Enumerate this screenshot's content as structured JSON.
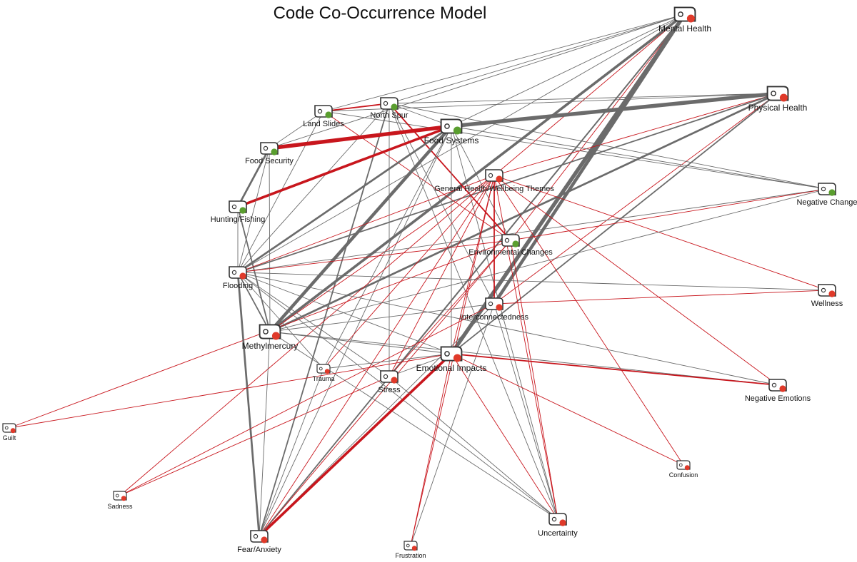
{
  "title": "Code Co-Occurrence Model",
  "colors": {
    "green_dot": "#5a9e2f",
    "red_dot": "#e03a2a",
    "gray_edge": "#6b6b6b",
    "red_edge": "#c8161d",
    "icon_stroke": "#333333"
  },
  "nodes": [
    {
      "id": "mental_health",
      "label": "Mental Health",
      "dot": "red",
      "size": "large"
    },
    {
      "id": "physical_health",
      "label": "Physical Health",
      "dot": "red",
      "size": "large"
    },
    {
      "id": "land_slides",
      "label": "Land Slides",
      "dot": "green",
      "size": "medium"
    },
    {
      "id": "north_spur",
      "label": "North Spur",
      "dot": "green",
      "size": "medium"
    },
    {
      "id": "food_systems",
      "label": "Food Systems",
      "dot": "green",
      "size": "large"
    },
    {
      "id": "food_security",
      "label": "Food Security",
      "dot": "green",
      "size": "medium"
    },
    {
      "id": "general_health",
      "label": "General Health/Wellbeing Themes",
      "dot": "red",
      "size": "medium"
    },
    {
      "id": "negative_change",
      "label": "Negative Change",
      "dot": "green",
      "size": "medium"
    },
    {
      "id": "hunting_fishing",
      "label": "Hunting/Fishing",
      "dot": "green",
      "size": "medium"
    },
    {
      "id": "environmental_changes",
      "label": "Environmental Changes",
      "dot": "green",
      "size": "medium"
    },
    {
      "id": "flooding",
      "label": "Flooding",
      "dot": "red",
      "size": "medium"
    },
    {
      "id": "wellness",
      "label": "Wellness",
      "dot": "red",
      "size": "medium"
    },
    {
      "id": "interconnectedness",
      "label": "Interconnectedness",
      "dot": "red",
      "size": "medium"
    },
    {
      "id": "methylmercury",
      "label": "Methylmercury",
      "dot": "red",
      "size": "large"
    },
    {
      "id": "emotional_impacts",
      "label": "Emotional Impacts",
      "dot": "red",
      "size": "large"
    },
    {
      "id": "trauma",
      "label": "Trauma",
      "dot": "red",
      "size": "small"
    },
    {
      "id": "stress",
      "label": "Stress",
      "dot": "red",
      "size": "medium"
    },
    {
      "id": "negative_emotions",
      "label": "Negative Emotions",
      "dot": "red",
      "size": "medium"
    },
    {
      "id": "guilt",
      "label": "Guilt",
      "dot": "red",
      "size": "small"
    },
    {
      "id": "confusion",
      "label": "Confusion",
      "dot": "red",
      "size": "small"
    },
    {
      "id": "sadness",
      "label": "Sadness",
      "dot": "red",
      "size": "small"
    },
    {
      "id": "uncertainty",
      "label": "Uncertainty",
      "dot": "red",
      "size": "medium"
    },
    {
      "id": "fear_anxiety",
      "label": "Fear/Anxiety",
      "dot": "red",
      "size": "medium"
    },
    {
      "id": "frustration",
      "label": "Frustration",
      "dot": "red",
      "size": "small"
    }
  ],
  "edges": [
    {
      "from": "mental_health",
      "to": "land_slides",
      "color": "gray",
      "weight": 1
    },
    {
      "from": "mental_health",
      "to": "north_spur",
      "color": "gray",
      "weight": 1
    },
    {
      "from": "mental_health",
      "to": "food_security",
      "color": "gray",
      "weight": 1
    },
    {
      "from": "mental_health",
      "to": "food_systems",
      "color": "gray",
      "weight": 1
    },
    {
      "from": "mental_health",
      "to": "general_health",
      "color": "red",
      "weight": 1
    },
    {
      "from": "mental_health",
      "to": "environmental_changes",
      "color": "red",
      "weight": 1
    },
    {
      "from": "mental_health",
      "to": "flooding",
      "color": "gray",
      "weight": 1
    },
    {
      "from": "mental_health",
      "to": "methylmercury",
      "color": "gray",
      "weight": 4
    },
    {
      "from": "mental_health",
      "to": "interconnectedness",
      "color": "gray",
      "weight": 5
    },
    {
      "from": "mental_health",
      "to": "emotional_impacts",
      "color": "gray",
      "weight": 6
    },
    {
      "from": "mental_health",
      "to": "stress",
      "color": "gray",
      "weight": 2
    },
    {
      "from": "mental_health",
      "to": "fear_anxiety",
      "color": "gray",
      "weight": 2
    },
    {
      "from": "physical_health",
      "to": "land_slides",
      "color": "gray",
      "weight": 1
    },
    {
      "from": "physical_health",
      "to": "north_spur",
      "color": "gray",
      "weight": 1
    },
    {
      "from": "physical_health",
      "to": "food_systems",
      "color": "gray",
      "weight": 6
    },
    {
      "from": "physical_health",
      "to": "general_health",
      "color": "red",
      "weight": 1
    },
    {
      "from": "physical_health",
      "to": "flooding",
      "color": "gray",
      "weight": 2
    },
    {
      "from": "physical_health",
      "to": "methylmercury",
      "color": "gray",
      "weight": 3
    },
    {
      "from": "physical_health",
      "to": "interconnectedness",
      "color": "red",
      "weight": 1
    },
    {
      "from": "physical_health",
      "to": "emotional_impacts",
      "color": "gray",
      "weight": 2
    },
    {
      "from": "land_slides",
      "to": "north_spur",
      "color": "red",
      "weight": 2
    },
    {
      "from": "land_slides",
      "to": "food_security",
      "color": "gray",
      "weight": 1
    },
    {
      "from": "land_slides",
      "to": "environmental_changes",
      "color": "red",
      "weight": 1
    },
    {
      "from": "land_slides",
      "to": "flooding",
      "color": "gray",
      "weight": 1
    },
    {
      "from": "land_slides",
      "to": "negative_change",
      "color": "gray",
      "weight": 1
    },
    {
      "from": "north_spur",
      "to": "food_systems",
      "color": "gray",
      "weight": 1
    },
    {
      "from": "north_spur",
      "to": "environmental_changes",
      "color": "red",
      "weight": 2
    },
    {
      "from": "north_spur",
      "to": "flooding",
      "color": "gray",
      "weight": 1
    },
    {
      "from": "north_spur",
      "to": "fear_anxiety",
      "color": "gray",
      "weight": 2
    },
    {
      "from": "north_spur",
      "to": "uncertainty",
      "color": "gray",
      "weight": 1
    },
    {
      "from": "north_spur",
      "to": "stress",
      "color": "gray",
      "weight": 1
    },
    {
      "from": "north_spur",
      "to": "negative_change",
      "color": "gray",
      "weight": 1
    },
    {
      "from": "north_spur",
      "to": "interconnectedness",
      "color": "gray",
      "weight": 1
    },
    {
      "from": "food_systems",
      "to": "food_security",
      "color": "red",
      "weight": 6
    },
    {
      "from": "food_systems",
      "to": "hunting_fishing",
      "color": "red",
      "weight": 4
    },
    {
      "from": "food_systems",
      "to": "flooding",
      "color": "gray",
      "weight": 3
    },
    {
      "from": "food_systems",
      "to": "methylmercury",
      "color": "gray",
      "weight": 5
    },
    {
      "from": "food_systems",
      "to": "negative_change",
      "color": "gray",
      "weight": 1
    },
    {
      "from": "food_systems",
      "to": "trauma",
      "color": "gray",
      "weight": 1
    },
    {
      "from": "food_systems",
      "to": "fear_anxiety",
      "color": "gray",
      "weight": 1
    },
    {
      "from": "food_systems",
      "to": "emotional_impacts",
      "color": "gray",
      "weight": 1
    },
    {
      "from": "food_systems",
      "to": "uncertainty",
      "color": "gray",
      "weight": 1
    },
    {
      "from": "food_systems",
      "to": "environmental_changes",
      "color": "gray",
      "weight": 1
    },
    {
      "from": "food_security",
      "to": "hunting_fishing",
      "color": "gray",
      "weight": 3
    },
    {
      "from": "food_security",
      "to": "flooding",
      "color": "gray",
      "weight": 1
    },
    {
      "from": "food_security",
      "to": "methylmercury",
      "color": "gray",
      "weight": 1
    },
    {
      "from": "hunting_fishing",
      "to": "methylmercury",
      "color": "gray",
      "weight": 2
    },
    {
      "from": "hunting_fishing",
      "to": "flooding",
      "color": "gray",
      "weight": 1
    },
    {
      "from": "general_health",
      "to": "flooding",
      "color": "red",
      "weight": 1
    },
    {
      "from": "general_health",
      "to": "methylmercury",
      "color": "red",
      "weight": 1
    },
    {
      "from": "general_health",
      "to": "emotional_impacts",
      "color": "red",
      "weight": 1
    },
    {
      "from": "general_health",
      "to": "stress",
      "color": "red",
      "weight": 1
    },
    {
      "from": "general_health",
      "to": "fear_anxiety",
      "color": "red",
      "weight": 1
    },
    {
      "from": "general_health",
      "to": "frustration",
      "color": "red",
      "weight": 1
    },
    {
      "from": "general_health",
      "to": "uncertainty",
      "color": "red",
      "weight": 1
    },
    {
      "from": "general_health",
      "to": "negative_emotions",
      "color": "red",
      "weight": 1
    },
    {
      "from": "general_health",
      "to": "wellness",
      "color": "red",
      "weight": 1
    },
    {
      "from": "general_health",
      "to": "confusion",
      "color": "red",
      "weight": 1
    },
    {
      "from": "general_health",
      "to": "sadness",
      "color": "red",
      "weight": 1
    },
    {
      "from": "general_health",
      "to": "interconnectedness",
      "color": "red",
      "weight": 2
    },
    {
      "from": "general_health",
      "to": "trauma",
      "color": "red",
      "weight": 1
    },
    {
      "from": "negative_change",
      "to": "flooding",
      "color": "gray",
      "weight": 1
    },
    {
      "from": "negative_change",
      "to": "environmental_changes",
      "color": "red",
      "weight": 1
    },
    {
      "from": "negative_change",
      "to": "methylmercury",
      "color": "gray",
      "weight": 1
    },
    {
      "from": "environmental_changes",
      "to": "flooding",
      "color": "red",
      "weight": 1
    },
    {
      "from": "environmental_changes",
      "to": "guilt",
      "color": "red",
      "weight": 1
    },
    {
      "from": "environmental_changes",
      "to": "stress",
      "color": "red",
      "weight": 1
    },
    {
      "from": "environmental_changes",
      "to": "fear_anxiety",
      "color": "red",
      "weight": 1
    },
    {
      "from": "environmental_changes",
      "to": "uncertainty",
      "color": "red",
      "weight": 1
    },
    {
      "from": "flooding",
      "to": "wellness",
      "color": "gray",
      "weight": 1
    },
    {
      "from": "flooding",
      "to": "methylmercury",
      "color": "gray",
      "weight": 2
    },
    {
      "from": "flooding",
      "to": "emotional_impacts",
      "color": "gray",
      "weight": 1
    },
    {
      "from": "flooding",
      "to": "negative_emotions",
      "color": "gray",
      "weight": 1
    },
    {
      "from": "flooding",
      "to": "stress",
      "color": "gray",
      "weight": 1
    },
    {
      "from": "flooding",
      "to": "uncertainty",
      "color": "gray",
      "weight": 1
    },
    {
      "from": "flooding",
      "to": "fear_anxiety",
      "color": "gray",
      "weight": 3
    },
    {
      "from": "flooding",
      "to": "trauma",
      "color": "gray",
      "weight": 1
    },
    {
      "from": "interconnectedness",
      "to": "wellness",
      "color": "red",
      "weight": 1
    },
    {
      "from": "interconnectedness",
      "to": "methylmercury",
      "color": "gray",
      "weight": 1
    },
    {
      "from": "interconnectedness",
      "to": "sadness",
      "color": "red",
      "weight": 1
    },
    {
      "from": "interconnectedness",
      "to": "fear_anxiety",
      "color": "gray",
      "weight": 1
    },
    {
      "from": "interconnectedness",
      "to": "uncertainty",
      "color": "gray",
      "weight": 1
    },
    {
      "from": "interconnectedness",
      "to": "frustration",
      "color": "gray",
      "weight": 1
    },
    {
      "from": "methylmercury",
      "to": "emotional_impacts",
      "color": "gray",
      "weight": 1
    },
    {
      "from": "methylmercury",
      "to": "fear_anxiety",
      "color": "gray",
      "weight": 1
    },
    {
      "from": "methylmercury",
      "to": "uncertainty",
      "color": "gray",
      "weight": 1
    },
    {
      "from": "methylmercury",
      "to": "negative_emotions",
      "color": "gray",
      "weight": 1
    },
    {
      "from": "emotional_impacts",
      "to": "negative_emotions",
      "color": "red",
      "weight": 2
    },
    {
      "from": "emotional_impacts",
      "to": "trauma",
      "color": "gray",
      "weight": 1
    },
    {
      "from": "emotional_impacts",
      "to": "guilt",
      "color": "red",
      "weight": 1
    },
    {
      "from": "emotional_impacts",
      "to": "stress",
      "color": "gray",
      "weight": 1
    },
    {
      "from": "emotional_impacts",
      "to": "fear_anxiety",
      "color": "red",
      "weight": 4
    },
    {
      "from": "emotional_impacts",
      "to": "frustration",
      "color": "red",
      "weight": 1
    },
    {
      "from": "emotional_impacts",
      "to": "uncertainty",
      "color": "red",
      "weight": 1
    },
    {
      "from": "emotional_impacts",
      "to": "confusion",
      "color": "red",
      "weight": 1
    },
    {
      "from": "stress",
      "to": "sadness",
      "color": "red",
      "weight": 1
    },
    {
      "from": "stress",
      "to": "uncertainty",
      "color": "gray",
      "weight": 1
    },
    {
      "from": "stress",
      "to": "fear_anxiety",
      "color": "gray",
      "weight": 1
    },
    {
      "from": "trauma",
      "to": "fear_anxiety",
      "color": "gray",
      "weight": 1
    }
  ]
}
